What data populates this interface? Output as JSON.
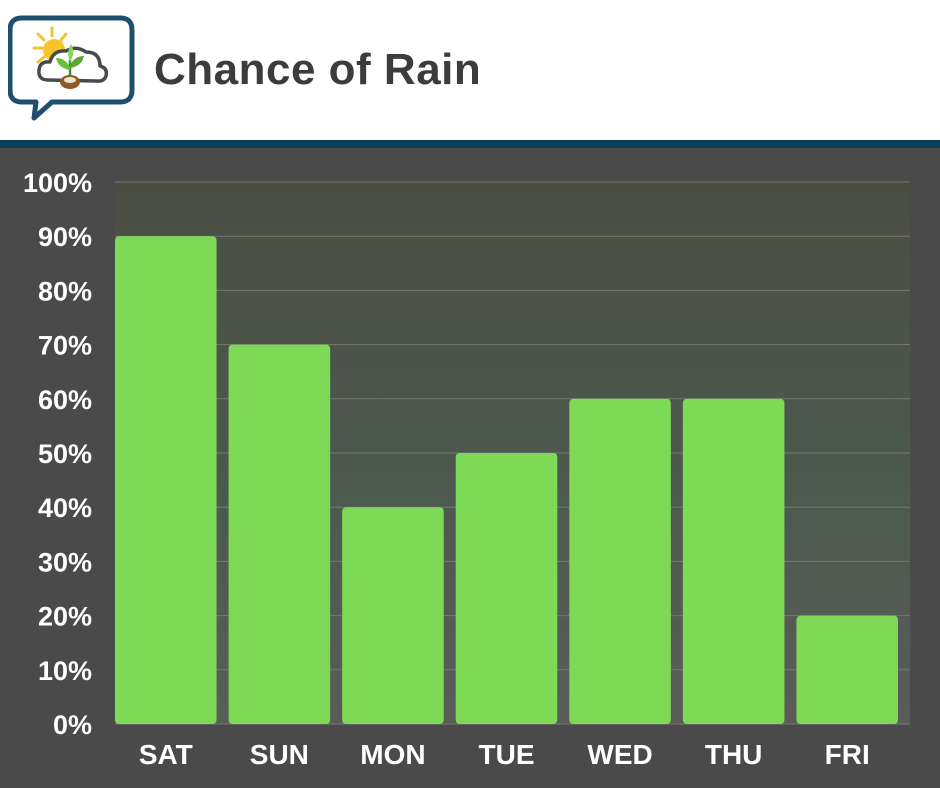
{
  "header": {
    "title": "Chance of Rain",
    "logo_icon": "weather-cloud-plant-icon"
  },
  "colors": {
    "header_bg": "#ffffff",
    "stripe": "#0f3d5c",
    "chart_bg": "#4a4a4a",
    "bar": "#7ed957",
    "text": "#ffffff",
    "title": "#3c3c3c"
  },
  "chart_data": {
    "type": "bar",
    "title": "Chance of Rain",
    "categories": [
      "SAT",
      "SUN",
      "MON",
      "TUE",
      "WED",
      "THU",
      "FRI"
    ],
    "values": [
      90,
      70,
      40,
      50,
      60,
      60,
      20
    ],
    "ylim": [
      0,
      100
    ],
    "yticks": [
      "0%",
      "10%",
      "20%",
      "30%",
      "40%",
      "50%",
      "60%",
      "70%",
      "80%",
      "90%",
      "100%"
    ],
    "grid": true,
    "legend": "none",
    "xlabel": "",
    "ylabel": ""
  }
}
